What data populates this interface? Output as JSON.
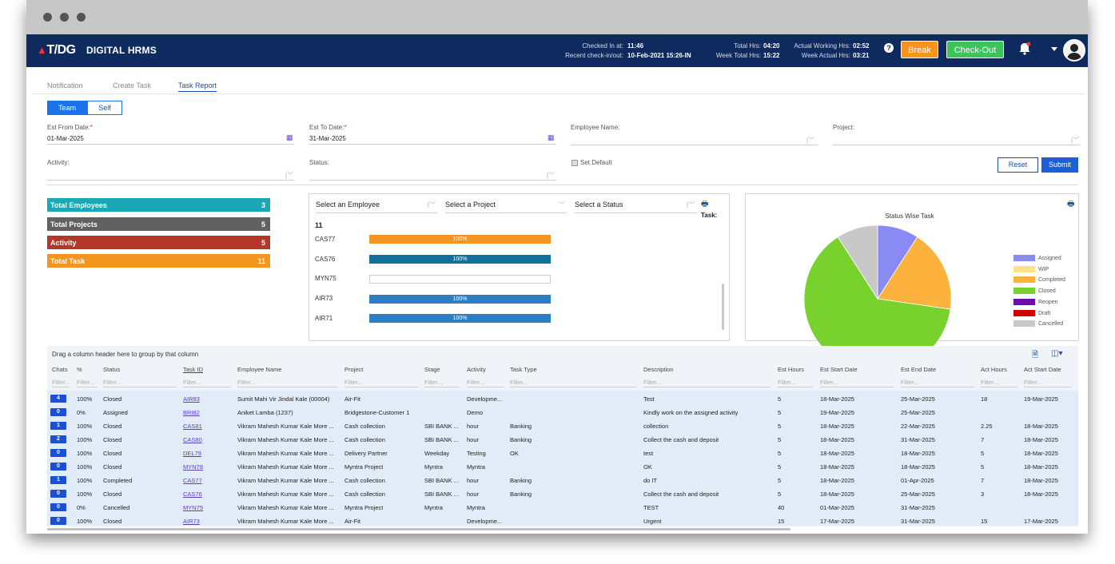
{
  "header": {
    "logo": "T/DG",
    "app_name": "DIGITAL HRMS",
    "checked_in_label": "Checked In at:",
    "checked_in_value": "11:46",
    "recent_label": "Recent check-in/out:",
    "recent_value": "10-Feb-2021 15:26-IN",
    "total_hrs_label": "Total Hrs:",
    "total_hrs_value": "04:20",
    "week_total_label": "Week Total Hrs:",
    "week_total_value": "15:22",
    "actual_label": "Actual Working Hrs:",
    "actual_value": "02:52",
    "week_actual_label": "Week Actual Hrs:",
    "week_actual_value": "03:21",
    "help_glyph": "?",
    "break_label": "Break",
    "checkout_label": "Check-Out"
  },
  "tabs": [
    "Notification",
    "Create Task",
    "Task Report"
  ],
  "toggle": {
    "team": "Team",
    "self": "Self"
  },
  "filters": {
    "est_from_label": "Est From Date:",
    "est_from_value": "01-Mar-2025",
    "est_to_label": "Est To Date:",
    "est_to_value": "31-Mar-2025",
    "employee_label": "Employee Name:",
    "project_label": "Project:",
    "activity_label": "Activity:",
    "status_label": "Status:",
    "set_default_label": "Set Default",
    "required_mark": "*",
    "reset_label": "Reset",
    "submit_label": "Submit"
  },
  "stats": [
    {
      "label": "Total Employees",
      "value": "3",
      "color": "#1ba8b6"
    },
    {
      "label": "Total Projects",
      "value": "5",
      "color": "#616161"
    },
    {
      "label": "Activity",
      "value": "5",
      "color": "#b5372a"
    },
    {
      "label": "Total Task",
      "value": "11",
      "color": "#f39520"
    }
  ],
  "progress_panel": {
    "select_employee": "Select an Employee",
    "select_project": "Select a Project",
    "select_status": "Select a Status",
    "task_label": "Task:",
    "count": "11",
    "bars": [
      {
        "label": "CAS77",
        "text": "100%",
        "percent": 100,
        "color": "#f39520"
      },
      {
        "label": "CAS76",
        "text": "100%",
        "percent": 100,
        "color": "#13709b"
      },
      {
        "label": "MYN75",
        "text": "",
        "percent": 0,
        "color": "#ffffff"
      },
      {
        "label": "AIR73",
        "text": "100%",
        "percent": 100,
        "color": "#2f7ec0"
      },
      {
        "label": "AIR71",
        "text": "100%",
        "percent": 100,
        "color": "#2f7ec0"
      }
    ]
  },
  "chart_data": {
    "type": "pie",
    "title": "Status Wise Task",
    "categories": [
      "Assigned",
      "WIP",
      "Completed",
      "Closed",
      "Reopen",
      "Draft",
      "Cancelled"
    ],
    "values": [
      1,
      0,
      2,
      7,
      0,
      0,
      1
    ],
    "colors": [
      "#8a8af5",
      "#fce38a",
      "#fdb23e",
      "#79d12e",
      "#6a0dad",
      "#d00000",
      "#c8c8c8"
    ],
    "legend": "right"
  },
  "grid": {
    "group_hint": "Drag a column header here to group by that column",
    "filter_placeholder": "Filter...",
    "columns": [
      "Chats",
      "%",
      "Status",
      "Task ID",
      "Employee Name",
      "Project",
      "Stage",
      "Activity",
      "Task Type",
      "Description",
      "Est Hours",
      "Est Start Date",
      "Est End Date",
      "Act Hours",
      "Act Start Date"
    ],
    "rows": [
      [
        "4",
        "100%",
        "Closed",
        "AIR83",
        "Sumit Mahi Vir Jindal Kale (00004)",
        "Air-Fit",
        "",
        "Developme...",
        "",
        "Test",
        "5",
        "18-Mar-2025",
        "25-Mar-2025",
        "18",
        "19-Mar-2025"
      ],
      [
        "0",
        "0%",
        "Assigned",
        "BRI82",
        "Aniket Lamba (1237)",
        "Bridgestone-Customer 1",
        "",
        "Demo",
        "",
        "Kindly work on the assigned activity",
        "5",
        "19-Mar-2025",
        "25-Mar-2025",
        "",
        ""
      ],
      [
        "1",
        "100%",
        "Closed",
        "CAS81",
        "Vikram Mahesh Kumar Kale More ...",
        "Cash collection",
        "SBI BANK ...",
        "hour",
        "Banking",
        "collection",
        "5",
        "18-Mar-2025",
        "22-Mar-2025",
        "2.25",
        "18-Mar-2025"
      ],
      [
        "2",
        "100%",
        "Closed",
        "CAS80",
        "Vikram Mahesh Kumar Kale More ...",
        "Cash collection",
        "SBI BANK ...",
        "hour",
        "Banking",
        "Collect the cash and deposit",
        "5",
        "18-Mar-2025",
        "31-Mar-2025",
        "7",
        "18-Mar-2025"
      ],
      [
        "0",
        "100%",
        "Closed",
        "DEL79",
        "Vikram Mahesh Kumar Kale More ...",
        "Delivery Partner",
        "Weekday",
        "Testing",
        "OK",
        "test",
        "5",
        "18-Mar-2025",
        "18-Mar-2025",
        "5",
        "18-Mar-2025"
      ],
      [
        "0",
        "100%",
        "Closed",
        "MYN78",
        "Vikram Mahesh Kumar Kale More ...",
        "Myntra Project",
        "Myntra",
        "Myntra",
        "",
        "OK",
        "5",
        "18-Mar-2025",
        "18-Mar-2025",
        "5",
        "18-Mar-2025"
      ],
      [
        "1",
        "100%",
        "Completed",
        "CAS77",
        "Vikram Mahesh Kumar Kale More ...",
        "Cash collection",
        "SBI BANK ...",
        "hour",
        "Banking",
        "do IT",
        "5",
        "18-Mar-2025",
        "01-Apr-2025",
        "7",
        "18-Mar-2025"
      ],
      [
        "0",
        "100%",
        "Closed",
        "CAS76",
        "Vikram Mahesh Kumar Kale More ...",
        "Cash collection",
        "SBI BANK ...",
        "hour",
        "Banking",
        "Collect the cash and deposit",
        "5",
        "18-Mar-2025",
        "25-Mar-2025",
        "3",
        "18-Mar-2025"
      ],
      [
        "0",
        "0%",
        "Cancelled",
        "MYN75",
        "Vikram Mahesh Kumar Kale More ...",
        "Myntra Project",
        "Myntra",
        "Myntra",
        "",
        "TEST",
        "40",
        "01-Mar-2025",
        "31-Mar-2025",
        "",
        ""
      ],
      [
        "0",
        "100%",
        "Closed",
        "AIR73",
        "Vikram Mahesh Kumar Kale More ...",
        "Air-Fit",
        "",
        "Developme...",
        "",
        "Urgent",
        "15",
        "17-Mar-2025",
        "31-Mar-2025",
        "15",
        "17-Mar-2025"
      ]
    ]
  }
}
